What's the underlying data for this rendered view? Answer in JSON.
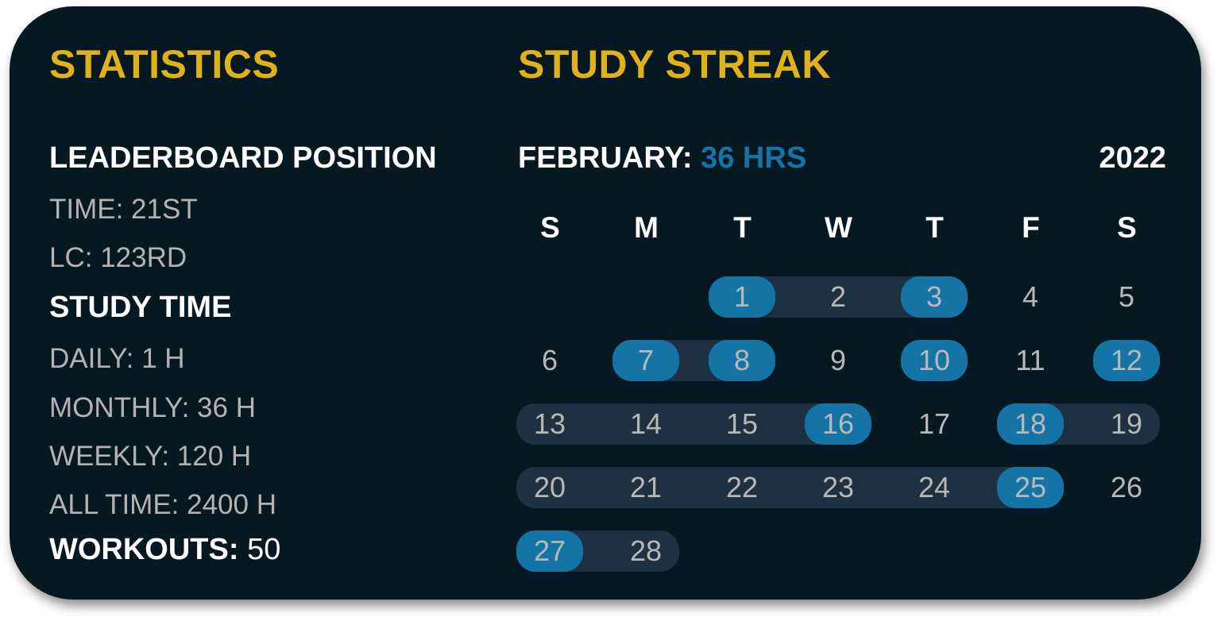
{
  "statistics": {
    "title": "STATISTICS",
    "leaderboard": {
      "heading": "LEADERBOARD POSITION",
      "items": [
        "TIME: 21ST",
        "LC: 123RD"
      ]
    },
    "study_time": {
      "heading": "STUDY TIME",
      "items": [
        "DAILY: 1 H",
        "MONTHLY: 36 H",
        "WEEKLY: 120 H",
        "ALL TIME: 2400 H"
      ]
    },
    "workouts": {
      "label": "WORKOUTS:",
      "value": "50"
    }
  },
  "streak": {
    "title": "STUDY STREAK",
    "month_label": "FEBRUARY:",
    "month_hours": "36 HRS",
    "year": "2022",
    "weekdays": [
      "S",
      "M",
      "T",
      "W",
      "T",
      "F",
      "S"
    ],
    "first_weekday_index": 2,
    "days_in_month": 28,
    "highlighted_days": [
      1,
      3,
      7,
      8,
      10,
      12,
      16,
      18,
      25,
      27
    ],
    "streak_ranges": [
      [
        1,
        3
      ],
      [
        7,
        8
      ],
      [
        13,
        16
      ],
      [
        18,
        19
      ],
      [
        20,
        25
      ],
      [
        27,
        28
      ]
    ],
    "colors": {
      "title": "#dfb21c",
      "highlight": "#1574a6",
      "streak_bar": "#1d3142",
      "background": "#061822"
    }
  }
}
